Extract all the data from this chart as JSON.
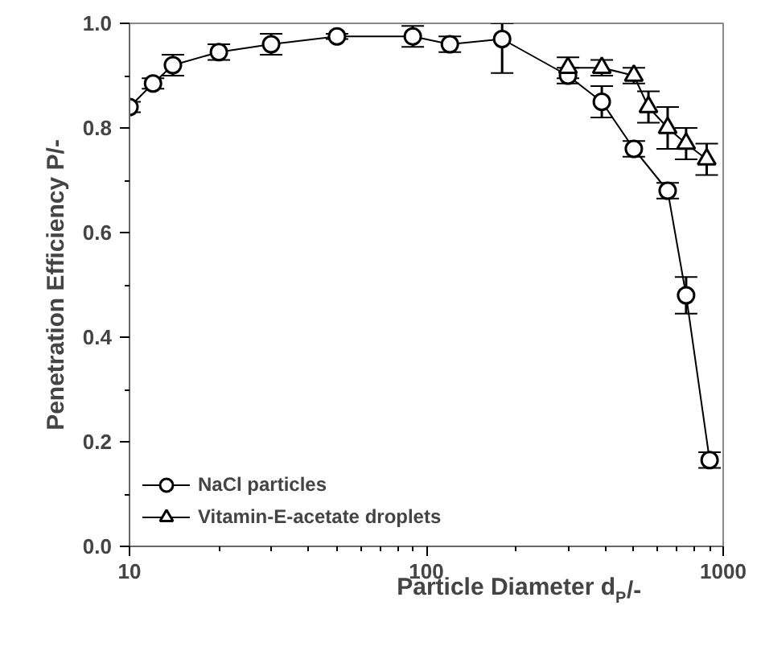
{
  "chart_data": {
    "type": "line",
    "xlabel": "Particle Diameter d$_{P}$/-",
    "ylabel": "Penetration Efficiency P/-",
    "log": "x",
    "xlim": [
      10,
      1000
    ],
    "ylim": [
      0,
      1
    ],
    "xticks": [
      10,
      100,
      1000
    ],
    "yticks": [
      {
        "value": 0,
        "label": "0.0"
      },
      {
        "value": 0.2,
        "label": "0.2"
      },
      {
        "value": 0.4,
        "label": "0.4"
      },
      {
        "value": 0.6,
        "label": "0.6"
      },
      {
        "value": 0.8,
        "label": "0.8"
      },
      {
        "value": 1,
        "label": "1.0"
      }
    ],
    "grid": false,
    "legend": "bottom left",
    "line_style": "solid",
    "series": [
      {
        "name": "NaCl particles",
        "color": "#000000",
        "marker": "circle",
        "x": [
          10,
          12,
          14,
          20,
          30,
          50,
          90,
          120,
          180,
          300,
          390,
          500,
          650,
          750,
          900
        ],
        "values": [
          0.84,
          0.885,
          0.92,
          0.945,
          0.96,
          0.975,
          0.975,
          0.96,
          0.97,
          0.9,
          0.85,
          0.76,
          0.68,
          0.48,
          0.165
        ],
        "errors": [
          0.01,
          0.01,
          0.02,
          0.015,
          0.02,
          0.005,
          0.02,
          0.015,
          [
            0.905,
            1.0
          ],
          0.015,
          0.03,
          0.015,
          0.015,
          0.035,
          0.015
        ]
      },
      {
        "name": "Vitamin-E-acetate droplets",
        "color": "#000000",
        "marker": "triangle",
        "x": [
          300,
          390,
          500,
          560,
          650,
          750,
          880
        ],
        "values": [
          0.915,
          0.915,
          0.9,
          0.84,
          0.8,
          0.77,
          0.74
        ],
        "errors": [
          0.02,
          0.015,
          0.015,
          0.03,
          0.04,
          0.03,
          0.03
        ]
      }
    ]
  }
}
